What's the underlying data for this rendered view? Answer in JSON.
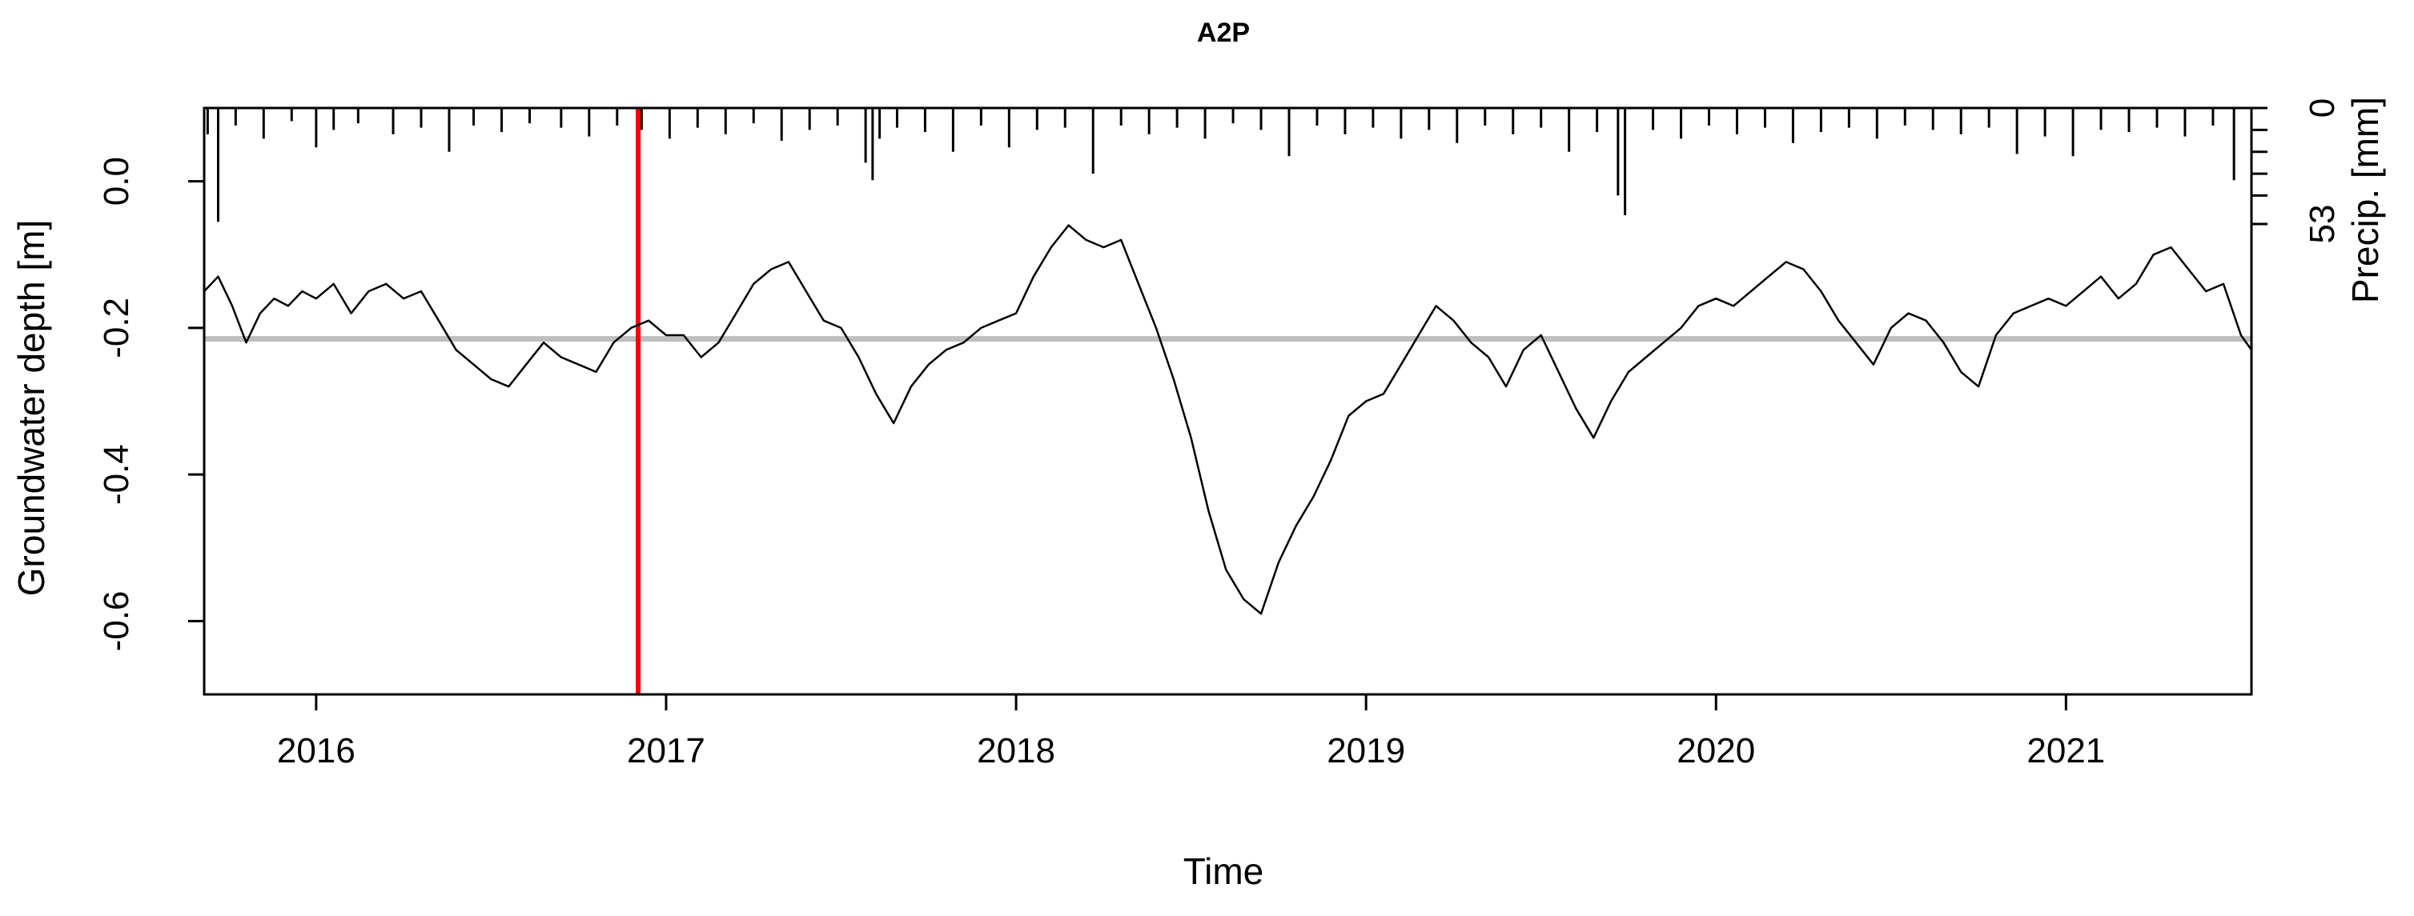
{
  "chart_data": {
    "type": "line",
    "title": "A2P",
    "xlabel": "Time",
    "ylabel": "Groundwater depth [m]",
    "y2label": "Precip. [mm]",
    "xlim": [
      2015.68,
      2021.53
    ],
    "ylim": [
      -0.7,
      0.1
    ],
    "x_ticks": [
      2016,
      2017,
      2018,
      2019,
      2020,
      2021
    ],
    "x_tick_labels": [
      "2016",
      "2017",
      "2018",
      "2019",
      "2020",
      "2021"
    ],
    "y_ticks": [
      0.0,
      -0.2,
      -0.4,
      -0.6
    ],
    "y_tick_labels": [
      "0.0",
      "-0.2",
      "-0.4",
      "-0.6"
    ],
    "y2_tick_labels": [
      "0",
      "53"
    ],
    "y2_ticks": [
      0,
      53
    ],
    "precip_max_mm": 53,
    "grid": false,
    "colors": {
      "groundwater": "#000000",
      "reference": "#bebebe",
      "marker": "#ff0000",
      "precip": "#000000"
    },
    "reference_level": -0.215,
    "marker_x": 2016.92,
    "groundwater_x": [
      2015.68,
      2015.72,
      2015.76,
      2015.8,
      2015.84,
      2015.88,
      2015.92,
      2015.96,
      2016.0,
      2016.05,
      2016.1,
      2016.15,
      2016.2,
      2016.25,
      2016.3,
      2016.35,
      2016.4,
      2016.45,
      2016.5,
      2016.55,
      2016.6,
      2016.65,
      2016.7,
      2016.75,
      2016.8,
      2016.85,
      2016.9,
      2016.95,
      2017.0,
      2017.05,
      2017.1,
      2017.15,
      2017.2,
      2017.25,
      2017.3,
      2017.35,
      2017.4,
      2017.45,
      2017.5,
      2017.55,
      2017.6,
      2017.65,
      2017.7,
      2017.75,
      2017.8,
      2017.85,
      2017.9,
      2017.95,
      2018.0,
      2018.05,
      2018.1,
      2018.15,
      2018.2,
      2018.25,
      2018.3,
      2018.35,
      2018.4,
      2018.45,
      2018.5,
      2018.55,
      2018.6,
      2018.65,
      2018.7,
      2018.75,
      2018.8,
      2018.85,
      2018.9,
      2018.95,
      2019.0,
      2019.05,
      2019.1,
      2019.15,
      2019.2,
      2019.25,
      2019.3,
      2019.35,
      2019.4,
      2019.45,
      2019.5,
      2019.55,
      2019.6,
      2019.65,
      2019.7,
      2019.75,
      2019.8,
      2019.85,
      2019.9,
      2019.95,
      2020.0,
      2020.05,
      2020.1,
      2020.15,
      2020.2,
      2020.25,
      2020.3,
      2020.35,
      2020.4,
      2020.45,
      2020.5,
      2020.55,
      2020.6,
      2020.65,
      2020.7,
      2020.75,
      2020.8,
      2020.85,
      2020.9,
      2020.95,
      2021.0,
      2021.05,
      2021.1,
      2021.15,
      2021.2,
      2021.25,
      2021.3,
      2021.35,
      2021.4,
      2021.45,
      2021.5,
      2021.53
    ],
    "groundwater_y": [
      -0.15,
      -0.13,
      -0.17,
      -0.22,
      -0.18,
      -0.16,
      -0.17,
      -0.15,
      -0.16,
      -0.14,
      -0.18,
      -0.15,
      -0.14,
      -0.16,
      -0.15,
      -0.19,
      -0.23,
      -0.25,
      -0.27,
      -0.28,
      -0.25,
      -0.22,
      -0.24,
      -0.25,
      -0.26,
      -0.22,
      -0.2,
      -0.19,
      -0.21,
      -0.21,
      -0.24,
      -0.22,
      -0.18,
      -0.14,
      -0.12,
      -0.11,
      -0.15,
      -0.19,
      -0.2,
      -0.24,
      -0.29,
      -0.33,
      -0.28,
      -0.25,
      -0.23,
      -0.22,
      -0.2,
      -0.19,
      -0.18,
      -0.13,
      -0.09,
      -0.06,
      -0.08,
      -0.09,
      -0.08,
      -0.14,
      -0.2,
      -0.27,
      -0.35,
      -0.45,
      -0.53,
      -0.57,
      -0.59,
      -0.52,
      -0.47,
      -0.43,
      -0.38,
      -0.32,
      -0.3,
      -0.29,
      -0.25,
      -0.21,
      -0.17,
      -0.19,
      -0.22,
      -0.24,
      -0.28,
      -0.23,
      -0.21,
      -0.26,
      -0.31,
      -0.35,
      -0.3,
      -0.26,
      -0.24,
      -0.22,
      -0.2,
      -0.17,
      -0.16,
      -0.17,
      -0.15,
      -0.13,
      -0.11,
      -0.12,
      -0.15,
      -0.19,
      -0.22,
      -0.25,
      -0.2,
      -0.18,
      -0.19,
      -0.22,
      -0.26,
      -0.28,
      -0.21,
      -0.18,
      -0.17,
      -0.16,
      -0.17,
      -0.15,
      -0.13,
      -0.16,
      -0.14,
      -0.1,
      -0.09,
      -0.12,
      -0.15,
      -0.14,
      -0.21,
      -0.23
    ],
    "precip_x": [
      2015.69,
      2015.72,
      2015.77,
      2015.85,
      2015.93,
      2016.0,
      2016.05,
      2016.12,
      2016.22,
      2016.3,
      2016.38,
      2016.45,
      2016.53,
      2016.61,
      2016.7,
      2016.78,
      2016.86,
      2016.93,
      2017.01,
      2017.09,
      2017.17,
      2017.25,
      2017.33,
      2017.41,
      2017.49,
      2017.57,
      2017.59,
      2017.61,
      2017.66,
      2017.74,
      2017.82,
      2017.9,
      2017.98,
      2018.06,
      2018.14,
      2018.22,
      2018.3,
      2018.38,
      2018.46,
      2018.54,
      2018.62,
      2018.7,
      2018.78,
      2018.86,
      2018.94,
      2019.02,
      2019.1,
      2019.18,
      2019.26,
      2019.34,
      2019.42,
      2019.5,
      2019.58,
      2019.66,
      2019.72,
      2019.74,
      2019.82,
      2019.9,
      2019.98,
      2020.06,
      2020.14,
      2020.22,
      2020.3,
      2020.38,
      2020.46,
      2020.54,
      2020.62,
      2020.7,
      2020.78,
      2020.86,
      2020.94,
      2021.02,
      2021.1,
      2021.18,
      2021.26,
      2021.34,
      2021.42,
      2021.48
    ],
    "precip_y": [
      12,
      52,
      8,
      14,
      6,
      18,
      10,
      7,
      12,
      9,
      20,
      8,
      11,
      7,
      9,
      13,
      8,
      10,
      14,
      9,
      12,
      7,
      15,
      10,
      8,
      25,
      33,
      14,
      9,
      11,
      20,
      8,
      18,
      10,
      9,
      30,
      8,
      12,
      9,
      14,
      7,
      10,
      22,
      8,
      12,
      9,
      14,
      10,
      16,
      8,
      12,
      9,
      20,
      11,
      40,
      49,
      10,
      14,
      8,
      12,
      9,
      16,
      11,
      9,
      14,
      8,
      10,
      12,
      9,
      21,
      13,
      22,
      10,
      11,
      9,
      13,
      8,
      33
    ]
  }
}
